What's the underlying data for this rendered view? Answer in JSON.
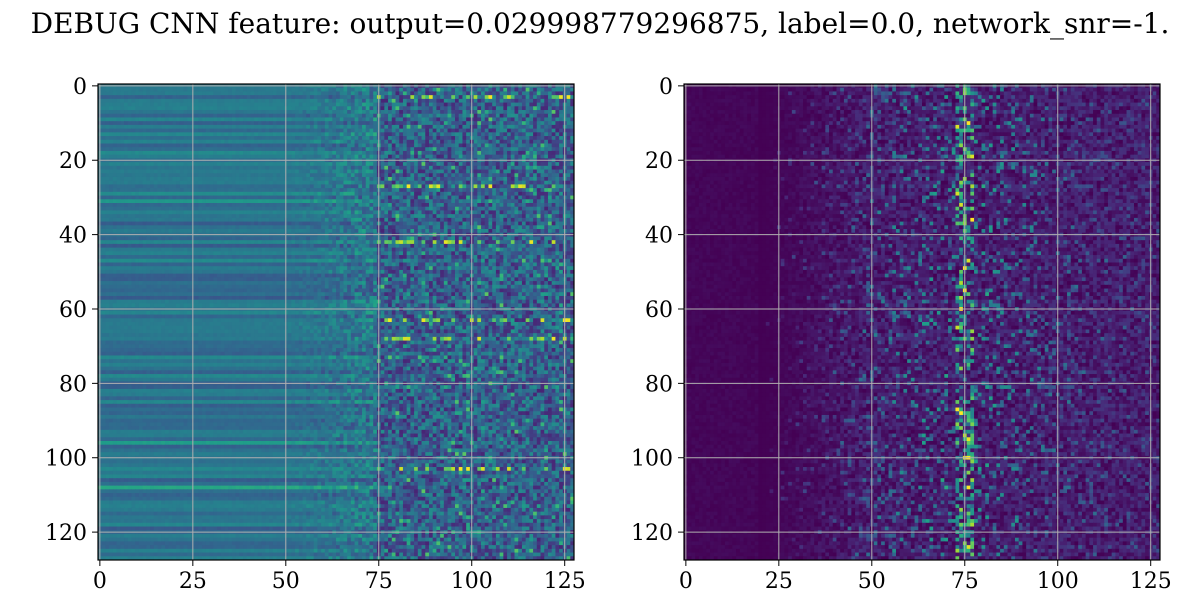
{
  "title": "DEBUG CNN feature: output=0.029998779296875, label=0.0, network_snr=-1.",
  "chart_data": [
    {
      "type": "heatmap",
      "name": "",
      "colormap": "viridis",
      "grid": true,
      "xlim": [
        -0.5,
        127.5
      ],
      "ylim": [
        127.5,
        -0.5
      ],
      "xticks": [
        0,
        25,
        50,
        75,
        100,
        125
      ],
      "yticks": [
        0,
        20,
        40,
        60,
        80,
        100,
        120
      ],
      "xlabel": "",
      "ylabel": "",
      "shape": [
        128,
        128
      ],
      "column_profile": "horizontal banding on columns 0-50 (values ~0.3-0.45), rising texture 50-75, high-variance speckle 75-127 with bright rows near 3, 27, 42, 63, 68, 103",
      "bright_rows": [
        3,
        27,
        42,
        63,
        68,
        103
      ]
    },
    {
      "type": "heatmap",
      "name": "",
      "colormap": "viridis",
      "grid": true,
      "xlim": [
        -0.5,
        127.5
      ],
      "ylim": [
        127.5,
        -0.5
      ],
      "xticks": [
        0,
        25,
        50,
        75,
        100,
        125
      ],
      "yticks": [
        0,
        20,
        40,
        60,
        80,
        100,
        120
      ],
      "xlabel": "",
      "ylabel": "",
      "shape": [
        128,
        128
      ],
      "column_profile": "near-zero on columns 0-20, sparse speckle spreading 20-127, bright vertical ridge centred near column 75",
      "ridge_column": 75
    }
  ]
}
